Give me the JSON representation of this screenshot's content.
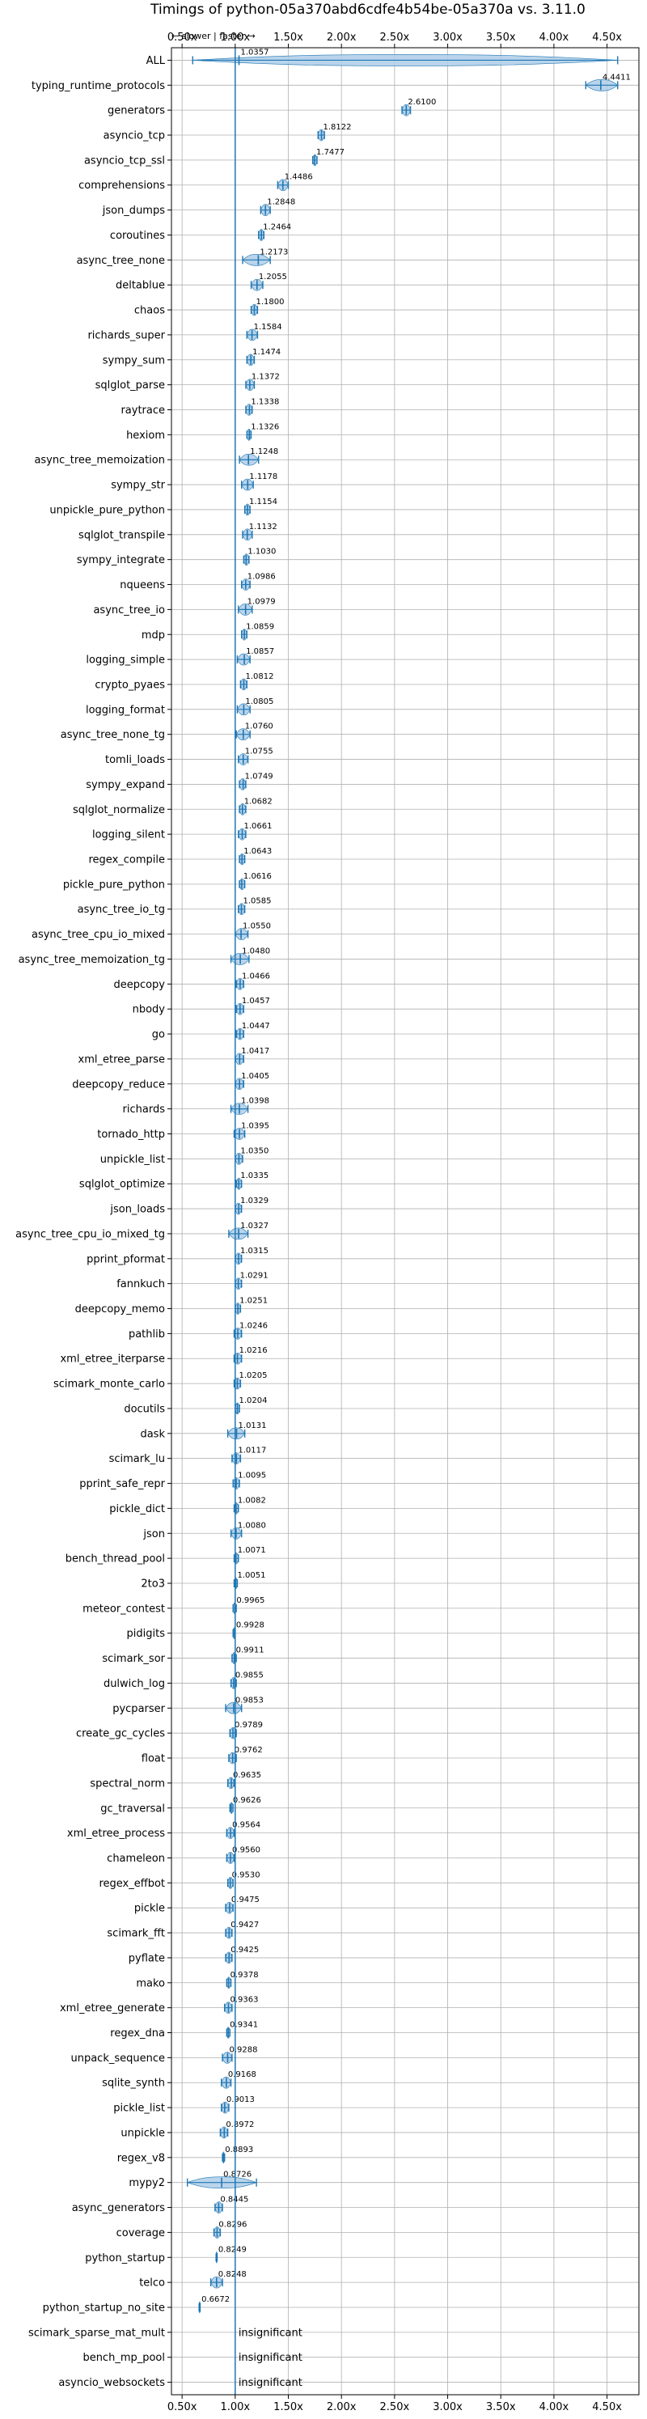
{
  "chart_data": {
    "type": "violin",
    "title": "Timings of python-05a370abd6cdfe4b54be-05a370a vs. 3.11.0",
    "subtitle": "← slower | faster →",
    "xlim": [
      0.4,
      4.8
    ],
    "xticks": [
      0.5,
      1.0,
      1.5,
      2.0,
      2.5,
      3.0,
      3.5,
      4.0,
      4.5
    ],
    "xtick_labels": [
      "0.50x",
      "1.00x",
      "1.50x",
      "2.00x",
      "2.50x",
      "3.00x",
      "3.50x",
      "4.00x",
      "4.50x"
    ],
    "reference_line": 1.0,
    "grid": true,
    "insignificant_label": "insignificant",
    "benchmarks": [
      {
        "name": "ALL",
        "value": 1.0357,
        "label": "1.0357",
        "min": 0.6,
        "max": 4.6
      },
      {
        "name": "typing_runtime_protocols",
        "value": 4.4411,
        "label": "4.4411",
        "min": 4.3,
        "max": 4.6
      },
      {
        "name": "generators",
        "value": 2.61,
        "label": "2.6100",
        "min": 2.57,
        "max": 2.65
      },
      {
        "name": "asyncio_tcp",
        "value": 1.8122,
        "label": "1.8122",
        "min": 1.78,
        "max": 1.84
      },
      {
        "name": "asyncio_tcp_ssl",
        "value": 1.7477,
        "label": "1.7477",
        "min": 1.73,
        "max": 1.77
      },
      {
        "name": "comprehensions",
        "value": 1.4486,
        "label": "1.4486",
        "min": 1.4,
        "max": 1.5
      },
      {
        "name": "json_dumps",
        "value": 1.2848,
        "label": "1.2848",
        "min": 1.24,
        "max": 1.33
      },
      {
        "name": "coroutines",
        "value": 1.2464,
        "label": "1.2464",
        "min": 1.22,
        "max": 1.27
      },
      {
        "name": "async_tree_none",
        "value": 1.2173,
        "label": "1.2173",
        "min": 1.07,
        "max": 1.33
      },
      {
        "name": "deltablue",
        "value": 1.2055,
        "label": "1.2055",
        "min": 1.15,
        "max": 1.26
      },
      {
        "name": "chaos",
        "value": 1.18,
        "label": "1.1800",
        "min": 1.15,
        "max": 1.21
      },
      {
        "name": "richards_super",
        "value": 1.1584,
        "label": "1.1584",
        "min": 1.11,
        "max": 1.21
      },
      {
        "name": "sympy_sum",
        "value": 1.1474,
        "label": "1.1474",
        "min": 1.11,
        "max": 1.18
      },
      {
        "name": "sqlglot_parse",
        "value": 1.1372,
        "label": "1.1372",
        "min": 1.1,
        "max": 1.18
      },
      {
        "name": "raytrace",
        "value": 1.1338,
        "label": "1.1338",
        "min": 1.1,
        "max": 1.16
      },
      {
        "name": "hexiom",
        "value": 1.1326,
        "label": "1.1326",
        "min": 1.11,
        "max": 1.15
      },
      {
        "name": "async_tree_memoization",
        "value": 1.1248,
        "label": "1.1248",
        "min": 1.04,
        "max": 1.22
      },
      {
        "name": "sympy_str",
        "value": 1.1178,
        "label": "1.1178",
        "min": 1.06,
        "max": 1.17
      },
      {
        "name": "unpickle_pure_python",
        "value": 1.1154,
        "label": "1.1154",
        "min": 1.09,
        "max": 1.14
      },
      {
        "name": "sqlglot_transpile",
        "value": 1.1132,
        "label": "1.1132",
        "min": 1.07,
        "max": 1.16
      },
      {
        "name": "sympy_integrate",
        "value": 1.103,
        "label": "1.1030",
        "min": 1.08,
        "max": 1.13
      },
      {
        "name": "nqueens",
        "value": 1.0986,
        "label": "1.0986",
        "min": 1.06,
        "max": 1.14
      },
      {
        "name": "async_tree_io",
        "value": 1.0979,
        "label": "1.0979",
        "min": 1.03,
        "max": 1.16
      },
      {
        "name": "mdp",
        "value": 1.0859,
        "label": "1.0859",
        "min": 1.06,
        "max": 1.11
      },
      {
        "name": "logging_simple",
        "value": 1.0857,
        "label": "1.0857",
        "min": 1.02,
        "max": 1.14
      },
      {
        "name": "crypto_pyaes",
        "value": 1.0812,
        "label": "1.0812",
        "min": 1.05,
        "max": 1.11
      },
      {
        "name": "logging_format",
        "value": 1.0805,
        "label": "1.0805",
        "min": 1.02,
        "max": 1.14
      },
      {
        "name": "async_tree_none_tg",
        "value": 1.076,
        "label": "1.0760",
        "min": 1.01,
        "max": 1.14
      },
      {
        "name": "tomli_loads",
        "value": 1.0755,
        "label": "1.0755",
        "min": 1.03,
        "max": 1.12
      },
      {
        "name": "sympy_expand",
        "value": 1.0749,
        "label": "1.0749",
        "min": 1.04,
        "max": 1.1
      },
      {
        "name": "sqlglot_normalize",
        "value": 1.0682,
        "label": "1.0682",
        "min": 1.04,
        "max": 1.1
      },
      {
        "name": "logging_silent",
        "value": 1.0661,
        "label": "1.0661",
        "min": 1.03,
        "max": 1.1
      },
      {
        "name": "regex_compile",
        "value": 1.0643,
        "label": "1.0643",
        "min": 1.04,
        "max": 1.09
      },
      {
        "name": "pickle_pure_python",
        "value": 1.0616,
        "label": "1.0616",
        "min": 1.04,
        "max": 1.09
      },
      {
        "name": "async_tree_io_tg",
        "value": 1.0585,
        "label": "1.0585",
        "min": 1.03,
        "max": 1.09
      },
      {
        "name": "async_tree_cpu_io_mixed",
        "value": 1.055,
        "label": "1.0550",
        "min": 1.0,
        "max": 1.12
      },
      {
        "name": "async_tree_memoization_tg",
        "value": 1.048,
        "label": "1.0480",
        "min": 0.96,
        "max": 1.13
      },
      {
        "name": "deepcopy",
        "value": 1.0466,
        "label": "1.0466",
        "min": 1.01,
        "max": 1.08
      },
      {
        "name": "nbody",
        "value": 1.0457,
        "label": "1.0457",
        "min": 1.01,
        "max": 1.08
      },
      {
        "name": "go",
        "value": 1.0447,
        "label": "1.0447",
        "min": 1.01,
        "max": 1.08
      },
      {
        "name": "xml_etree_parse",
        "value": 1.0417,
        "label": "1.0417",
        "min": 1.0,
        "max": 1.08
      },
      {
        "name": "deepcopy_reduce",
        "value": 1.0405,
        "label": "1.0405",
        "min": 1.0,
        "max": 1.08
      },
      {
        "name": "richards",
        "value": 1.0398,
        "label": "1.0398",
        "min": 0.96,
        "max": 1.12
      },
      {
        "name": "tornado_http",
        "value": 1.0395,
        "label": "1.0395",
        "min": 0.99,
        "max": 1.09
      },
      {
        "name": "unpickle_list",
        "value": 1.035,
        "label": "1.0350",
        "min": 1.0,
        "max": 1.07
      },
      {
        "name": "sqlglot_optimize",
        "value": 1.0335,
        "label": "1.0335",
        "min": 1.01,
        "max": 1.06
      },
      {
        "name": "json_loads",
        "value": 1.0329,
        "label": "1.0329",
        "min": 1.0,
        "max": 1.06
      },
      {
        "name": "async_tree_cpu_io_mixed_tg",
        "value": 1.0327,
        "label": "1.0327",
        "min": 0.94,
        "max": 1.12
      },
      {
        "name": "pprint_pformat",
        "value": 1.0315,
        "label": "1.0315",
        "min": 1.0,
        "max": 1.06
      },
      {
        "name": "fannkuch",
        "value": 1.0291,
        "label": "1.0291",
        "min": 1.0,
        "max": 1.06
      },
      {
        "name": "deepcopy_memo",
        "value": 1.0251,
        "label": "1.0251",
        "min": 1.0,
        "max": 1.05
      },
      {
        "name": "pathlib",
        "value": 1.0246,
        "label": "1.0246",
        "min": 0.99,
        "max": 1.06
      },
      {
        "name": "xml_etree_iterparse",
        "value": 1.0216,
        "label": "1.0216",
        "min": 0.99,
        "max": 1.06
      },
      {
        "name": "scimark_monte_carlo",
        "value": 1.0205,
        "label": "1.0205",
        "min": 0.99,
        "max": 1.05
      },
      {
        "name": "docutils",
        "value": 1.0204,
        "label": "1.0204",
        "min": 1.0,
        "max": 1.04
      },
      {
        "name": "dask",
        "value": 1.0131,
        "label": "1.0131",
        "min": 0.93,
        "max": 1.09
      },
      {
        "name": "scimark_lu",
        "value": 1.0117,
        "label": "1.0117",
        "min": 0.97,
        "max": 1.05
      },
      {
        "name": "pprint_safe_repr",
        "value": 1.0095,
        "label": "1.0095",
        "min": 0.98,
        "max": 1.04
      },
      {
        "name": "pickle_dict",
        "value": 1.0082,
        "label": "1.0082",
        "min": 0.99,
        "max": 1.03
      },
      {
        "name": "json",
        "value": 1.008,
        "label": "1.0080",
        "min": 0.96,
        "max": 1.06
      },
      {
        "name": "bench_thread_pool",
        "value": 1.0071,
        "label": "1.0071",
        "min": 0.99,
        "max": 1.03
      },
      {
        "name": "2to3",
        "value": 1.0051,
        "label": "1.0051",
        "min": 0.99,
        "max": 1.02
      },
      {
        "name": "meteor_contest",
        "value": 0.9965,
        "label": "0.9965",
        "min": 0.98,
        "max": 1.01
      },
      {
        "name": "pidigits",
        "value": 0.9928,
        "label": "0.9928",
        "min": 0.98,
        "max": 1.0
      },
      {
        "name": "scimark_sor",
        "value": 0.9911,
        "label": "0.9911",
        "min": 0.97,
        "max": 1.01
      },
      {
        "name": "dulwich_log",
        "value": 0.9855,
        "label": "0.9855",
        "min": 0.96,
        "max": 1.01
      },
      {
        "name": "pycparser",
        "value": 0.9853,
        "label": "0.9853",
        "min": 0.91,
        "max": 1.06
      },
      {
        "name": "create_gc_cycles",
        "value": 0.9789,
        "label": "0.9789",
        "min": 0.95,
        "max": 1.01
      },
      {
        "name": "float",
        "value": 0.9762,
        "label": "0.9762",
        "min": 0.94,
        "max": 1.01
      },
      {
        "name": "spectral_norm",
        "value": 0.9635,
        "label": "0.9635",
        "min": 0.93,
        "max": 0.99
      },
      {
        "name": "gc_traversal",
        "value": 0.9626,
        "label": "0.9626",
        "min": 0.95,
        "max": 0.98
      },
      {
        "name": "xml_etree_process",
        "value": 0.9564,
        "label": "0.9564",
        "min": 0.92,
        "max": 0.99
      },
      {
        "name": "chameleon",
        "value": 0.956,
        "label": "0.9560",
        "min": 0.92,
        "max": 0.99
      },
      {
        "name": "regex_effbot",
        "value": 0.953,
        "label": "0.9530",
        "min": 0.93,
        "max": 0.98
      },
      {
        "name": "pickle",
        "value": 0.9475,
        "label": "0.9475",
        "min": 0.91,
        "max": 0.98
      },
      {
        "name": "scimark_fft",
        "value": 0.9427,
        "label": "0.9427",
        "min": 0.91,
        "max": 0.97
      },
      {
        "name": "pyflate",
        "value": 0.9425,
        "label": "0.9425",
        "min": 0.91,
        "max": 0.97
      },
      {
        "name": "mako",
        "value": 0.9378,
        "label": "0.9378",
        "min": 0.92,
        "max": 0.96
      },
      {
        "name": "xml_etree_generate",
        "value": 0.9363,
        "label": "0.9363",
        "min": 0.9,
        "max": 0.97
      },
      {
        "name": "regex_dna",
        "value": 0.9341,
        "label": "0.9341",
        "min": 0.92,
        "max": 0.95
      },
      {
        "name": "unpack_sequence",
        "value": 0.9288,
        "label": "0.9288",
        "min": 0.88,
        "max": 0.97
      },
      {
        "name": "sqlite_synth",
        "value": 0.9168,
        "label": "0.9168",
        "min": 0.87,
        "max": 0.96
      },
      {
        "name": "pickle_list",
        "value": 0.9013,
        "label": "0.9013",
        "min": 0.87,
        "max": 0.94
      },
      {
        "name": "unpickle",
        "value": 0.8972,
        "label": "0.8972",
        "min": 0.86,
        "max": 0.93
      },
      {
        "name": "regex_v8",
        "value": 0.8893,
        "label": "0.8893",
        "min": 0.88,
        "max": 0.9
      },
      {
        "name": "mypy2",
        "value": 0.8726,
        "label": "0.8726",
        "min": 0.55,
        "max": 1.2
      },
      {
        "name": "async_generators",
        "value": 0.8445,
        "label": "0.8445",
        "min": 0.81,
        "max": 0.88
      },
      {
        "name": "coverage",
        "value": 0.8296,
        "label": "0.8296",
        "min": 0.8,
        "max": 0.86
      },
      {
        "name": "python_startup",
        "value": 0.8249,
        "label": "0.8249",
        "min": 0.82,
        "max": 0.83
      },
      {
        "name": "telco",
        "value": 0.8248,
        "label": "0.8248",
        "min": 0.77,
        "max": 0.88
      },
      {
        "name": "python_startup_no_site",
        "value": 0.6672,
        "label": "0.6672",
        "min": 0.66,
        "max": 0.67
      },
      {
        "name": "scimark_sparse_mat_mult",
        "value": null,
        "label": "insignificant"
      },
      {
        "name": "bench_mp_pool",
        "value": null,
        "label": "insignificant"
      },
      {
        "name": "asyncio_websockets",
        "value": null,
        "label": "insignificant"
      }
    ],
    "colors": {
      "violin_fill": "#aecde8",
      "line": "#1f77b4",
      "grid": "#b0b0b0",
      "axis": "#000000"
    }
  }
}
